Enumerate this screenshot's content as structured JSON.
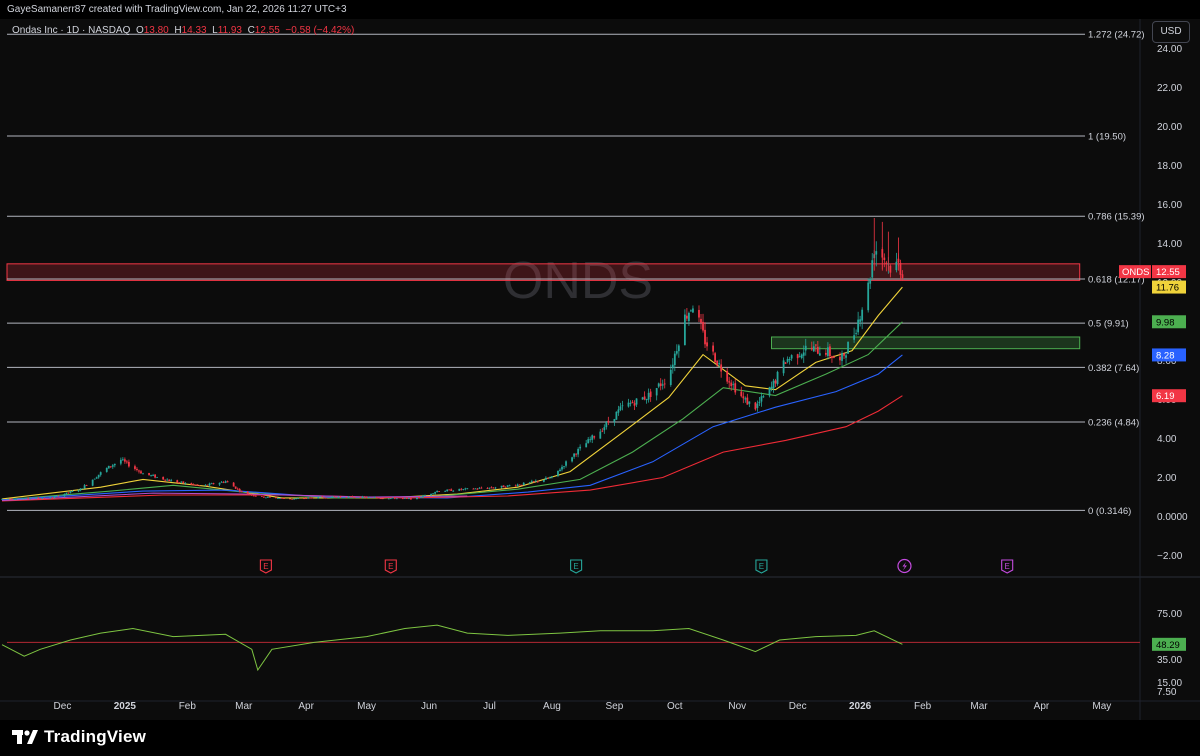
{
  "header": {
    "attribution": "GayeSamanerr87 created with TradingView.com, Jan 22, 2026 11:27 UTC+3"
  },
  "legend": {
    "symbol": "Ondas Inc · 1D · NASDAQ",
    "o_label": "O",
    "o_value": "13.80",
    "h_label": "H",
    "h_value": "14.33",
    "l_label": "L",
    "l_value": "11.93",
    "c_label": "C",
    "c_value": "12.55",
    "change": "−0.58 (−4.42%)"
  },
  "currency_button": "USD",
  "watermark": "ONDS",
  "brand": "TradingView",
  "colors": {
    "up": "#26a69a",
    "down": "#f23645",
    "ma1": "#f0d33a",
    "ma2": "#4caf50",
    "ma3": "#2962ff",
    "ma4": "#ef2b36",
    "rsi": "#7ec542"
  },
  "chart_data": [
    {
      "type": "candlestick",
      "title": "",
      "price_axis": {
        "min": -3,
        "max": 25.5,
        "ticks": [
          "−2.00",
          "0.0000",
          "2.00",
          "4.00",
          "6.00",
          "8.00",
          "10.00",
          "12.00",
          "14.00",
          "16.00",
          "18.00",
          "20.00",
          "22.00",
          "24.00"
        ],
        "tick_values": [
          -2,
          0,
          2,
          4,
          6,
          8,
          10,
          12,
          14,
          16,
          18,
          20,
          22,
          24
        ]
      },
      "time_axis": {
        "labels": [
          "Dec",
          "2025",
          "Feb",
          "Mar",
          "Apr",
          "May",
          "Jun",
          "Jul",
          "Aug",
          "Sep",
          "Oct",
          "Nov",
          "Dec",
          "2026",
          "Feb",
          "Mar",
          "Apr",
          "May"
        ],
        "label_dates": [
          "2024-12-01",
          "2025-01-01",
          "2025-02-01",
          "2025-03-01",
          "2025-04-01",
          "2025-05-01",
          "2025-06-01",
          "2025-07-01",
          "2025-08-01",
          "2025-09-01",
          "2025-10-01",
          "2025-11-01",
          "2025-12-01",
          "2026-01-01",
          "2026-02-01",
          "2026-03-01",
          "2026-04-01",
          "2026-05-01"
        ],
        "bold": [
          "2025",
          "2026"
        ]
      },
      "fib_levels": [
        {
          "label": "1.272 (24.72)",
          "value": 24.72
        },
        {
          "label": "1 (19.50)",
          "value": 19.5
        },
        {
          "label": "0.786 (15.39)",
          "value": 15.39
        },
        {
          "label": "0.618 (12.17)",
          "value": 12.17
        },
        {
          "label": "0.5 (9.91)",
          "value": 9.91
        },
        {
          "label": "0.382 (7.64)",
          "value": 7.64
        },
        {
          "label": "0.236 (4.84)",
          "value": 4.84
        },
        {
          "label": "0 (0.3146)",
          "value": 0.3146
        }
      ],
      "zones": [
        {
          "name": "resistance",
          "from": 12.1,
          "to": 12.95,
          "start": "2024-11-01",
          "end": "2026-04-20"
        },
        {
          "name": "support",
          "from": 8.6,
          "to": 9.2,
          "start": "2025-11-18",
          "end": "2026-04-20"
        }
      ],
      "price_tags": [
        {
          "label": "ONDS",
          "value_text": "12.55",
          "value": 12.55
        },
        {
          "value_text": "11.76",
          "value": 11.76
        },
        {
          "value_text": "9.98",
          "value": 9.98
        },
        {
          "value_text": "8.28",
          "value": 8.28
        },
        {
          "value_text": "6.19",
          "value": 6.19
        }
      ],
      "close_path": [
        [
          "2024-11-01",
          0.9
        ],
        [
          "2024-11-25",
          0.95
        ],
        [
          "2024-12-10",
          1.4
        ],
        [
          "2024-12-22",
          2.4
        ],
        [
          "2024-12-30",
          2.9
        ],
        [
          "2025-01-10",
          2.2
        ],
        [
          "2025-01-25",
          1.8
        ],
        [
          "2025-02-08",
          1.55
        ],
        [
          "2025-02-20",
          1.8
        ],
        [
          "2025-03-01",
          1.2
        ],
        [
          "2025-03-10",
          1.0
        ],
        [
          "2025-03-25",
          0.9
        ],
        [
          "2025-04-10",
          1.0
        ],
        [
          "2025-04-25",
          1.0
        ],
        [
          "2025-05-10",
          0.95
        ],
        [
          "2025-05-25",
          0.9
        ],
        [
          "2025-06-05",
          1.3
        ],
        [
          "2025-06-20",
          1.4
        ],
        [
          "2025-07-05",
          1.5
        ],
        [
          "2025-07-20",
          1.7
        ],
        [
          "2025-08-01",
          2.0
        ],
        [
          "2025-08-12",
          3.2
        ],
        [
          "2025-08-25",
          4.4
        ],
        [
          "2025-09-05",
          5.6
        ],
        [
          "2025-09-18",
          6.2
        ],
        [
          "2025-09-28",
          7.2
        ],
        [
          "2025-10-06",
          10.2
        ],
        [
          "2025-10-10",
          10.9
        ],
        [
          "2025-10-16",
          9.0
        ],
        [
          "2025-10-24",
          7.6
        ],
        [
          "2025-11-04",
          6.0
        ],
        [
          "2025-11-10",
          5.6
        ],
        [
          "2025-11-18",
          6.6
        ],
        [
          "2025-11-25",
          8.0
        ],
        [
          "2025-12-05",
          8.6
        ],
        [
          "2025-12-15",
          8.5
        ],
        [
          "2025-12-22",
          7.9
        ],
        [
          "2025-12-29",
          9.4
        ],
        [
          "2026-01-05",
          11.8
        ],
        [
          "2026-01-08",
          13.8
        ],
        [
          "2026-01-12",
          13.4
        ],
        [
          "2026-01-16",
          12.8
        ],
        [
          "2026-01-20",
          12.9
        ],
        [
          "2026-01-22",
          12.55
        ]
      ],
      "moving_averages": [
        {
          "color": "ma1",
          "points": [
            [
              "2024-11-01",
              0.9
            ],
            [
              "2024-12-20",
              1.5
            ],
            [
              "2025-01-10",
              1.9
            ],
            [
              "2025-02-10",
              1.55
            ],
            [
              "2025-03-20",
              0.95
            ],
            [
              "2025-05-10",
              0.95
            ],
            [
              "2025-06-15",
              1.15
            ],
            [
              "2025-07-15",
              1.5
            ],
            [
              "2025-08-10",
              2.3
            ],
            [
              "2025-09-05",
              4.3
            ],
            [
              "2025-09-28",
              6.1
            ],
            [
              "2025-10-15",
              8.3
            ],
            [
              "2025-11-05",
              6.7
            ],
            [
              "2025-11-20",
              6.5
            ],
            [
              "2025-12-10",
              7.9
            ],
            [
              "2025-12-28",
              8.5
            ],
            [
              "2026-01-10",
              10.3
            ],
            [
              "2026-01-22",
              11.76
            ]
          ]
        },
        {
          "color": "ma2",
          "points": [
            [
              "2024-11-01",
              0.85
            ],
            [
              "2024-12-25",
              1.3
            ],
            [
              "2025-01-25",
              1.6
            ],
            [
              "2025-03-01",
              1.25
            ],
            [
              "2025-04-15",
              0.95
            ],
            [
              "2025-06-01",
              1.0
            ],
            [
              "2025-07-15",
              1.4
            ],
            [
              "2025-08-15",
              1.9
            ],
            [
              "2025-09-10",
              3.3
            ],
            [
              "2025-10-05",
              5.0
            ],
            [
              "2025-10-25",
              6.6
            ],
            [
              "2025-11-20",
              6.2
            ],
            [
              "2025-12-15",
              7.3
            ],
            [
              "2026-01-05",
              8.3
            ],
            [
              "2026-01-22",
              9.98
            ]
          ]
        },
        {
          "color": "ma3",
          "points": [
            [
              "2024-11-01",
              0.85
            ],
            [
              "2025-01-10",
              1.3
            ],
            [
              "2025-02-20",
              1.35
            ],
            [
              "2025-04-10",
              1.0
            ],
            [
              "2025-06-10",
              0.95
            ],
            [
              "2025-07-20",
              1.25
            ],
            [
              "2025-08-20",
              1.6
            ],
            [
              "2025-09-20",
              2.8
            ],
            [
              "2025-10-20",
              4.6
            ],
            [
              "2025-11-20",
              5.6
            ],
            [
              "2025-12-20",
              6.4
            ],
            [
              "2026-01-10",
              7.3
            ],
            [
              "2026-01-22",
              8.28
            ]
          ]
        },
        {
          "color": "ma4",
          "points": [
            [
              "2024-11-01",
              0.8
            ],
            [
              "2025-01-20",
              1.1
            ],
            [
              "2025-03-20",
              1.1
            ],
            [
              "2025-05-20",
              0.95
            ],
            [
              "2025-07-10",
              1.05
            ],
            [
              "2025-08-20",
              1.35
            ],
            [
              "2025-09-25",
              2.0
            ],
            [
              "2025-10-25",
              3.3
            ],
            [
              "2025-11-25",
              3.9
            ],
            [
              "2025-12-25",
              4.6
            ],
            [
              "2026-01-10",
              5.4
            ],
            [
              "2026-01-22",
              6.19
            ]
          ]
        }
      ],
      "events": [
        {
          "date": "2025-03-12",
          "kind": "earnings",
          "color": "down"
        },
        {
          "date": "2025-05-13",
          "kind": "earnings",
          "color": "down"
        },
        {
          "date": "2025-08-13",
          "kind": "earnings",
          "color": "up"
        },
        {
          "date": "2025-11-13",
          "kind": "earnings",
          "color": "up"
        },
        {
          "date": "2026-01-23",
          "kind": "flash",
          "color": "purple"
        },
        {
          "date": "2026-03-15",
          "kind": "earnings",
          "color": "purple"
        }
      ],
      "event_letter": "E"
    },
    {
      "type": "line",
      "title": "",
      "rsi_axis": {
        "min": 0,
        "max": 85,
        "ticks": [
          "7.50",
          "15.00",
          "35.00",
          "75.00"
        ],
        "tick_values": [
          7.5,
          15,
          35,
          75
        ]
      },
      "midline": 50,
      "last_value_text": "48.29",
      "last_value": 48.29,
      "points": [
        [
          "2024-11-01",
          48
        ],
        [
          "2024-11-12",
          38
        ],
        [
          "2024-11-20",
          44
        ],
        [
          "2024-12-05",
          52
        ],
        [
          "2024-12-20",
          58
        ],
        [
          "2025-01-05",
          62
        ],
        [
          "2025-01-25",
          55
        ],
        [
          "2025-02-20",
          57
        ],
        [
          "2025-03-05",
          44
        ],
        [
          "2025-03-08",
          26
        ],
        [
          "2025-03-15",
          44
        ],
        [
          "2025-04-05",
          50
        ],
        [
          "2025-05-01",
          55
        ],
        [
          "2025-05-20",
          62
        ],
        [
          "2025-06-05",
          65
        ],
        [
          "2025-06-20",
          58
        ],
        [
          "2025-07-10",
          56
        ],
        [
          "2025-08-05",
          58
        ],
        [
          "2025-08-25",
          60
        ],
        [
          "2025-09-20",
          60
        ],
        [
          "2025-10-08",
          62
        ],
        [
          "2025-10-25",
          52
        ],
        [
          "2025-11-10",
          42
        ],
        [
          "2025-11-22",
          52
        ],
        [
          "2025-12-10",
          55
        ],
        [
          "2025-12-30",
          56
        ],
        [
          "2026-01-08",
          60
        ],
        [
          "2026-01-22",
          48.29
        ]
      ]
    }
  ]
}
